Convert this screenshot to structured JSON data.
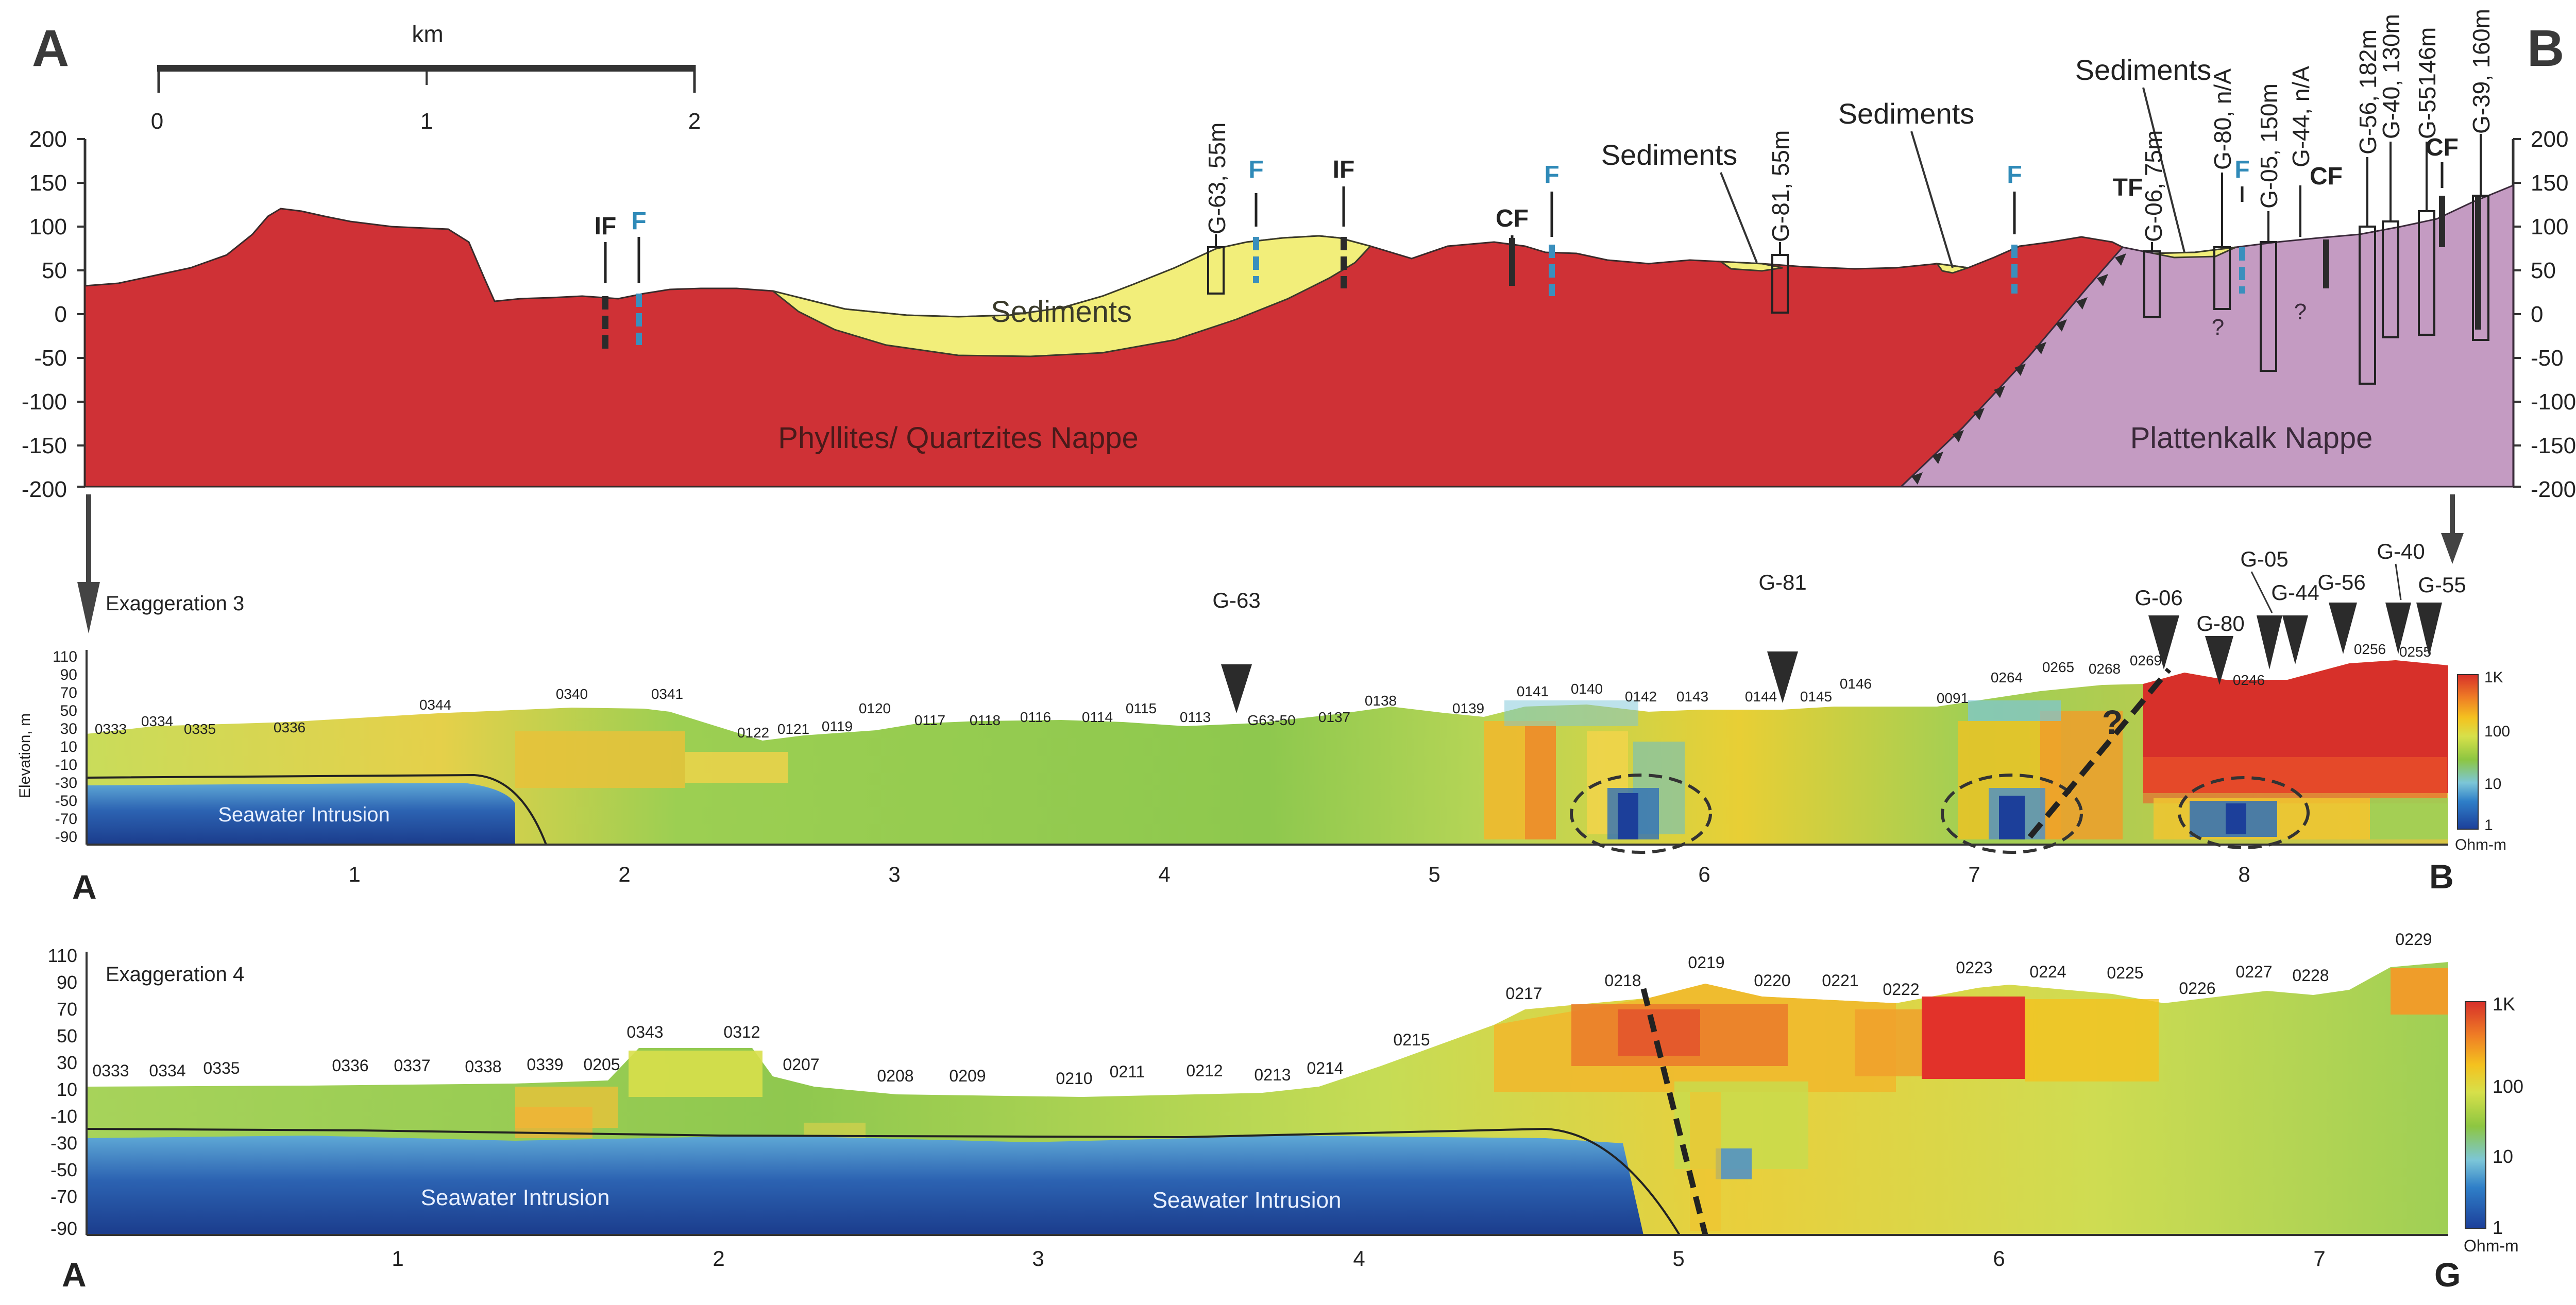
{
  "top_section": {
    "corner_left": "A",
    "corner_right": "B",
    "scale": {
      "title": "km",
      "ticks": [
        "0",
        "1",
        "2"
      ]
    },
    "y_ticks": [
      "200",
      "150",
      "100",
      "50",
      "0",
      "-50",
      "-100",
      "-150",
      "-200"
    ],
    "units": {
      "phyllites": "Phyllites/ Quartzites Nappe",
      "plattenkalk": "Plattenkalk Nappe",
      "sediments_main": "Sediments",
      "sediments_1": "Sediments",
      "sediments_2": "Sediments",
      "sediments_3": "Sediments"
    },
    "fault_labels": [
      {
        "key": "if1",
        "text": "IF"
      },
      {
        "key": "f1",
        "text": "F"
      },
      {
        "key": "f2",
        "text": "F"
      },
      {
        "key": "if2",
        "text": "IF"
      },
      {
        "key": "cf1",
        "text": "CF"
      },
      {
        "key": "f3",
        "text": "F"
      },
      {
        "key": "f4",
        "text": "F"
      },
      {
        "key": "tf",
        "text": "TF"
      },
      {
        "key": "f5",
        "text": "F"
      },
      {
        "key": "cf2",
        "text": "CF"
      },
      {
        "key": "cf3",
        "text": "CF"
      }
    ],
    "wells": [
      {
        "key": "g63",
        "text": "G-63, 55m"
      },
      {
        "key": "g81",
        "text": "G-81, 55m"
      },
      {
        "key": "g06",
        "text": "G-06, 75m"
      },
      {
        "key": "g80",
        "text": "G-80, n/A"
      },
      {
        "key": "g05",
        "text": "G-05, 150m"
      },
      {
        "key": "g44",
        "text": "G-44, n/A"
      },
      {
        "key": "g56",
        "text": "G-56, 182m"
      },
      {
        "key": "g40",
        "text": "G-40, 130m"
      },
      {
        "key": "g55",
        "text": "G-55146m"
      },
      {
        "key": "g39",
        "text": "G-39, 160m"
      }
    ],
    "unknown_marks": [
      "?",
      "?"
    ]
  },
  "profile_1": {
    "title": "Exaggeration 3",
    "y_axis_label": "Elevation, m",
    "y_ticks": [
      "110",
      "90",
      "70",
      "50",
      "30",
      "10",
      "-10",
      "-30",
      "-50",
      "-70",
      "-90"
    ],
    "x_ticks": [
      "1",
      "2",
      "3",
      "4",
      "5",
      "6",
      "7",
      "8"
    ],
    "start_label": "A",
    "end_label": "B",
    "seawater_label": "Seawater Intrusion",
    "question_mark": "?",
    "stations": [
      "0333",
      "0334",
      "0335",
      "0336",
      "0344",
      "0340",
      "0341",
      "0122",
      "0121",
      "0119",
      "0120",
      "0117",
      "0118",
      "0116",
      "0114",
      "0115",
      "0113",
      "G63-50",
      "0137",
      "0138",
      "0139",
      "0141",
      "0140",
      "0142",
      "0143",
      "0144",
      "0145",
      "0146",
      "0091",
      "0264",
      "0265",
      "0268",
      "0269",
      "0246",
      "0256",
      "0255"
    ],
    "well_markers": [
      "G-63",
      "G-81",
      "G-06",
      "G-80",
      "G-05",
      "G-44",
      "G-56",
      "G-40",
      "G-55"
    ],
    "colorbar": {
      "ticks": [
        "1K",
        "100",
        "10",
        "1"
      ],
      "unit": "Ohm-m"
    }
  },
  "profile_2": {
    "title": "Exaggeration 4",
    "y_ticks": [
      "110",
      "90",
      "70",
      "50",
      "30",
      "10",
      "-10",
      "-30",
      "-50",
      "-70",
      "-90"
    ],
    "x_ticks": [
      "1",
      "2",
      "3",
      "4",
      "5",
      "6",
      "7"
    ],
    "start_label": "A",
    "end_label": "G",
    "seawater_label_1": "Seawater Intrusion",
    "seawater_label_2": "Seawater Intrusion",
    "stations": [
      "0333",
      "0334",
      "0335",
      "0336",
      "0337",
      "0338",
      "0339",
      "0205",
      "0343",
      "0312",
      "0207",
      "0208",
      "0209",
      "0210",
      "0211",
      "0212",
      "0213",
      "0214",
      "0215",
      "0217",
      "0218",
      "0219",
      "0220",
      "0221",
      "0222",
      "0223",
      "0224",
      "0225",
      "0226",
      "0227",
      "0228",
      "0229"
    ],
    "colorbar": {
      "ticks": [
        "1K",
        "100",
        "10",
        "1"
      ],
      "unit": "Ohm-m"
    }
  },
  "colors": {
    "phyllites": "#cf3136",
    "plattenkalk": "#c49bc2",
    "sediments": "#f2ee7a",
    "resistivity_scale": [
      "#1c3f9a",
      "#2f7fc8",
      "#7cc6d8",
      "#8dc641",
      "#d7e04a",
      "#f4c21f",
      "#ef7e25",
      "#d7302a"
    ]
  }
}
